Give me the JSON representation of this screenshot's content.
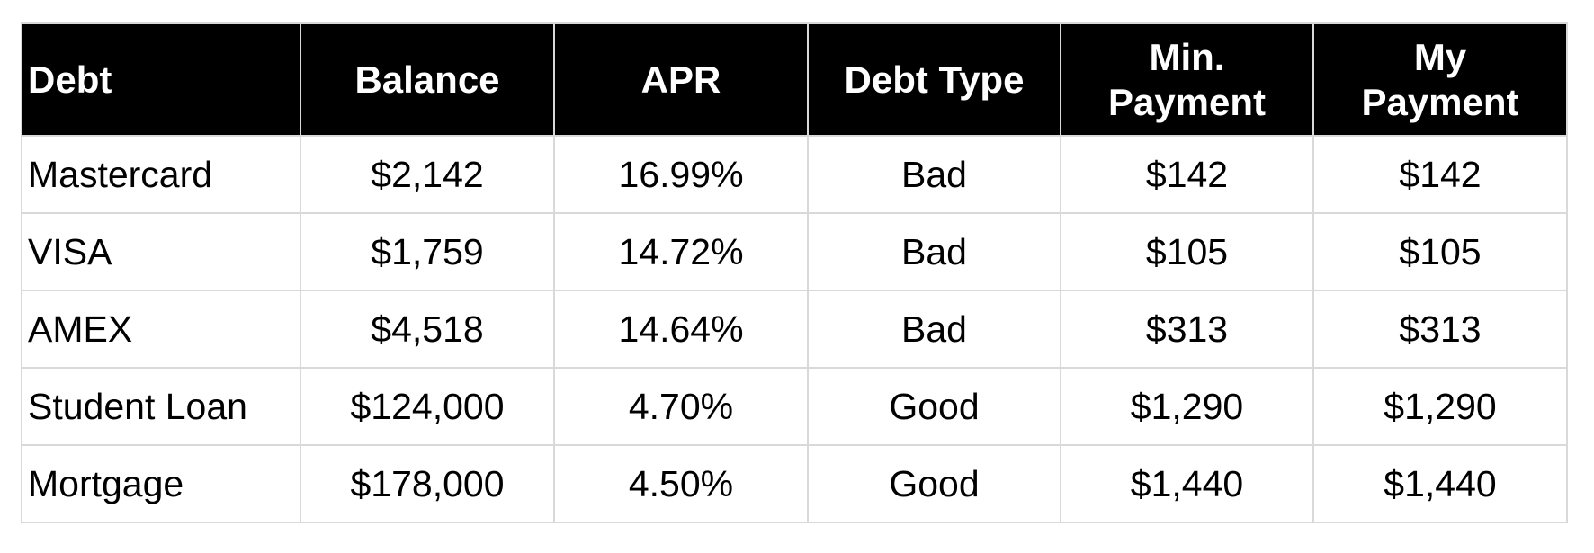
{
  "table": {
    "headers": [
      "Debt",
      "Balance",
      "APR",
      "Debt Type",
      "Min.\nPayment",
      "My\nPayment"
    ],
    "rows": [
      [
        "Mastercard",
        "$2,142",
        "16.99%",
        "Bad",
        "$142",
        "$142"
      ],
      [
        "VISA",
        "$1,759",
        "14.72%",
        "Bad",
        "$105",
        "$105"
      ],
      [
        "AMEX",
        "$4,518",
        "14.64%",
        "Bad",
        "$313",
        "$313"
      ],
      [
        "Student Loan",
        "$124,000",
        "4.70%",
        "Good",
        "$1,290",
        "$1,290"
      ],
      [
        "Mortgage",
        "$178,000",
        "4.50%",
        "Good",
        "$1,440",
        "$1,440"
      ]
    ]
  }
}
